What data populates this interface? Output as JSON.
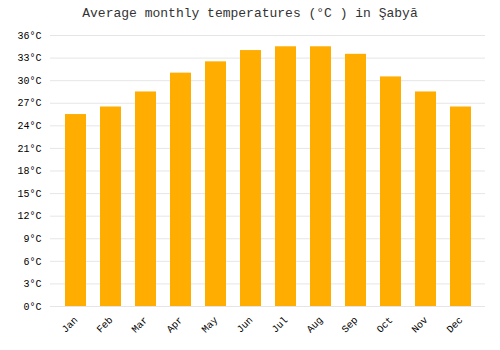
{
  "chart_data": {
    "type": "bar",
    "title": "Average monthly temperatures (°C ) in Şabyā",
    "categories": [
      "Jan",
      "Feb",
      "Mar",
      "Apr",
      "May",
      "Jun",
      "Jul",
      "Aug",
      "Sep",
      "Oct",
      "Nov",
      "Dec"
    ],
    "values": [
      25.5,
      26.5,
      28.5,
      31.0,
      32.5,
      34.0,
      34.5,
      34.5,
      33.5,
      30.5,
      28.5,
      26.5
    ],
    "color": "#FFAD00",
    "ylim": [
      0,
      36
    ],
    "yticks": [
      {
        "value": 0,
        "label": "0°C"
      },
      {
        "value": 3,
        "label": "3°C"
      },
      {
        "value": 6,
        "label": "6°C"
      },
      {
        "value": 9,
        "label": "9°C"
      },
      {
        "value": 12,
        "label": "12°C"
      },
      {
        "value": 15,
        "label": "15°C"
      },
      {
        "value": 18,
        "label": "18°C"
      },
      {
        "value": 21,
        "label": "21°C"
      },
      {
        "value": 24,
        "label": "24°C"
      },
      {
        "value": 27,
        "label": "27°C"
      },
      {
        "value": 30,
        "label": "30°C"
      },
      {
        "value": 33,
        "label": "33°C"
      },
      {
        "value": 36,
        "label": "36°C"
      }
    ],
    "grid": true
  }
}
